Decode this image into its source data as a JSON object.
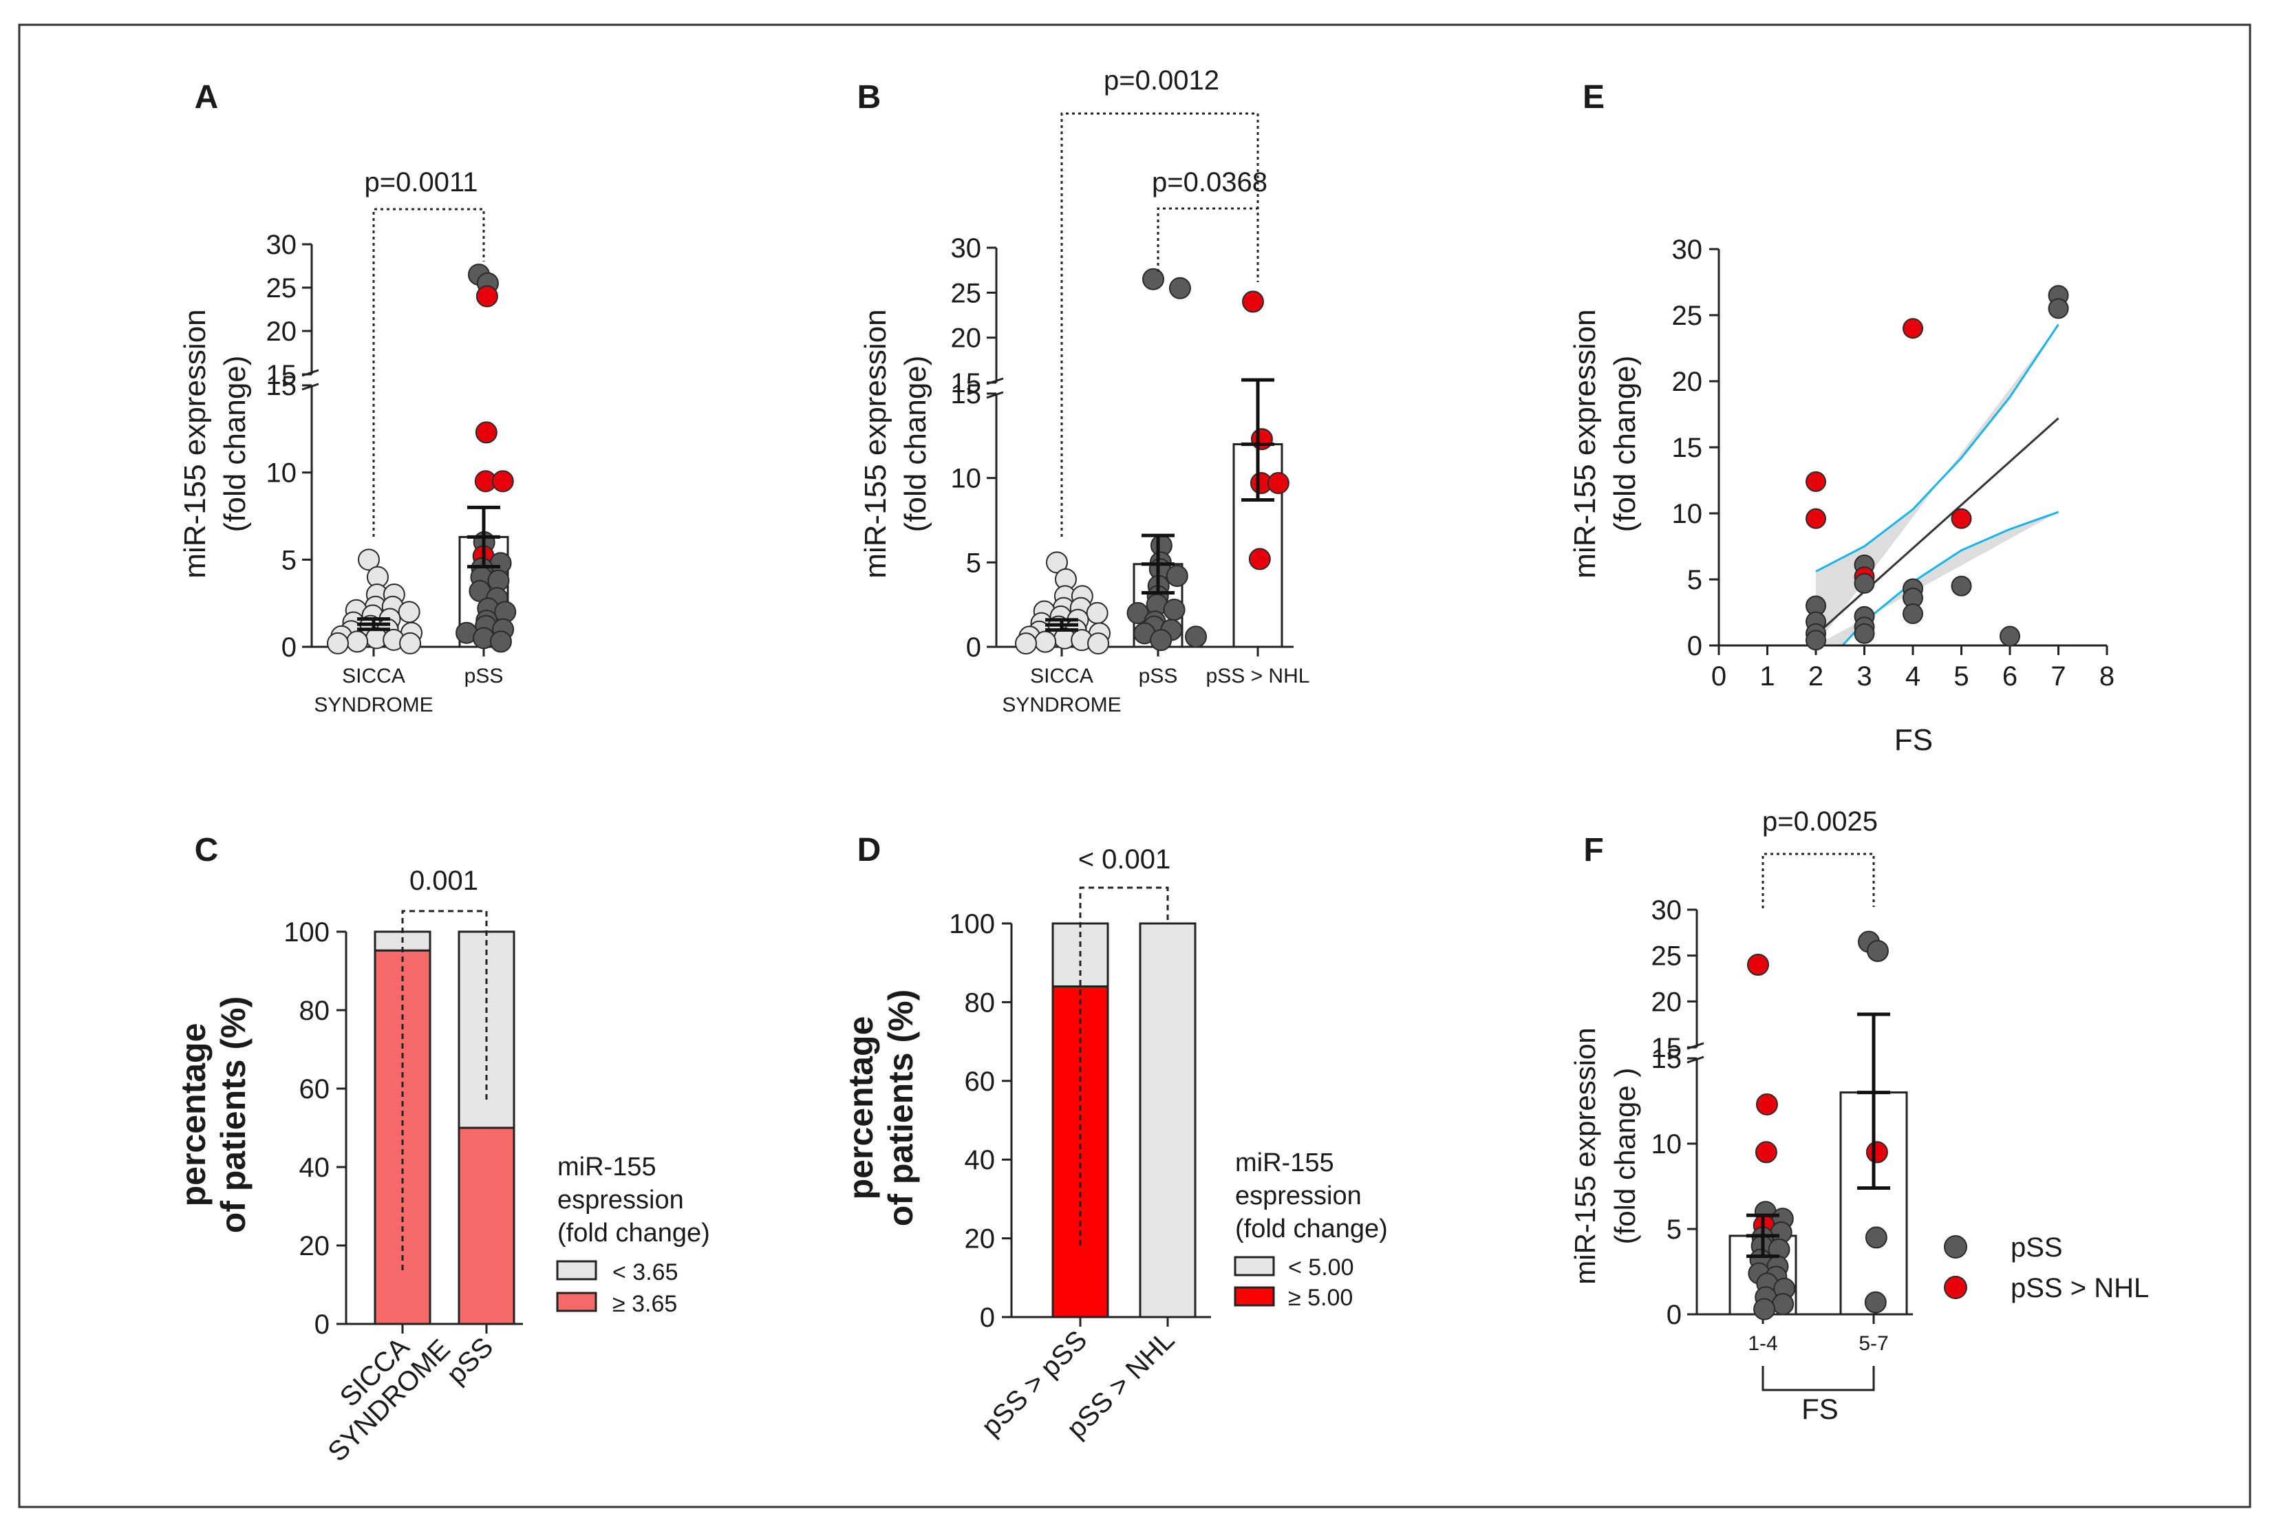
{
  "colors": {
    "dark_point": "#5a5a5a",
    "red_point": "#e8000b",
    "light_point": "#e6e6e6",
    "light_bar": "#e6e6e6",
    "pink_bar": "#f86a6a",
    "red_bar": "#ff0000",
    "ci_band": "#dddddd",
    "ci_line": "#19b4e6",
    "fit_line": "#333333"
  },
  "legend_F": {
    "pss": "pSS",
    "pss_nhl": "pSS > NHL"
  },
  "chart_data": [
    {
      "panel": "A",
      "type": "scatter",
      "ylabel_1": "miR-155 expression",
      "ylabel_2": "(fold change)",
      "lower_ticks": [
        0,
        5,
        10,
        15
      ],
      "upper_ticks": [
        15,
        20,
        25,
        30
      ],
      "ylim": [
        0,
        30
      ],
      "axis_break": 15,
      "categories": [
        {
          "label_lines": [
            "SICCA",
            "SYNDROME"
          ],
          "bar_mean": 1.3,
          "sem": 0.3,
          "points": [
            {
              "y": 5.0,
              "c": "l"
            },
            {
              "y": 4.0,
              "c": "l"
            },
            {
              "y": 3.0,
              "c": "l"
            },
            {
              "y": 3.0,
              "c": "l"
            },
            {
              "y": 2.3,
              "c": "l"
            },
            {
              "y": 2.3,
              "c": "l"
            },
            {
              "y": 2.1,
              "c": "l"
            },
            {
              "y": 2.0,
              "c": "l"
            },
            {
              "y": 1.8,
              "c": "l"
            },
            {
              "y": 1.6,
              "c": "l"
            },
            {
              "y": 1.4,
              "c": "l"
            },
            {
              "y": 1.2,
              "c": "l"
            },
            {
              "y": 1.0,
              "c": "l"
            },
            {
              "y": 0.9,
              "c": "l"
            },
            {
              "y": 0.8,
              "c": "l"
            },
            {
              "y": 0.6,
              "c": "l"
            },
            {
              "y": 0.5,
              "c": "l"
            },
            {
              "y": 0.4,
              "c": "l"
            },
            {
              "y": 0.3,
              "c": "l"
            },
            {
              "y": 0.2,
              "c": "l"
            },
            {
              "y": 0.2,
              "c": "l"
            }
          ]
        },
        {
          "label_lines": [
            "pSS"
          ],
          "bar_mean": 6.3,
          "sem": 1.7,
          "points": [
            {
              "y": 26.5,
              "c": "d"
            },
            {
              "y": 25.5,
              "c": "d"
            },
            {
              "y": 24.0,
              "c": "r"
            },
            {
              "y": 12.3,
              "c": "r"
            },
            {
              "y": 9.5,
              "c": "r"
            },
            {
              "y": 9.5,
              "c": "r"
            },
            {
              "y": 6.0,
              "c": "d"
            },
            {
              "y": 5.2,
              "c": "r"
            },
            {
              "y": 4.8,
              "c": "d"
            },
            {
              "y": 4.5,
              "c": "d"
            },
            {
              "y": 4.0,
              "c": "d"
            },
            {
              "y": 3.8,
              "c": "d"
            },
            {
              "y": 3.2,
              "c": "d"
            },
            {
              "y": 2.8,
              "c": "d"
            },
            {
              "y": 2.2,
              "c": "d"
            },
            {
              "y": 2.0,
              "c": "d"
            },
            {
              "y": 1.5,
              "c": "d"
            },
            {
              "y": 1.2,
              "c": "d"
            },
            {
              "y": 1.0,
              "c": "d"
            },
            {
              "y": 0.8,
              "c": "d"
            },
            {
              "y": 0.5,
              "c": "d"
            },
            {
              "y": 0.3,
              "c": "d"
            }
          ]
        }
      ],
      "annotations": [
        {
          "text": "p=0.0011",
          "from": 0,
          "to": 1
        }
      ]
    },
    {
      "panel": "B",
      "type": "scatter",
      "ylabel_1": "miR-155 expression",
      "ylabel_2": "(fold change)",
      "lower_ticks": [
        0,
        5,
        10,
        15
      ],
      "upper_ticks": [
        15,
        20,
        25,
        30
      ],
      "ylim": [
        0,
        30
      ],
      "axis_break": 15,
      "categories": [
        {
          "label_lines": [
            "SICCA",
            "SYNDROME"
          ],
          "bar_mean": 1.3,
          "sem": 0.3,
          "points": [
            {
              "y": 5.0,
              "c": "l"
            },
            {
              "y": 4.0,
              "c": "l"
            },
            {
              "y": 3.0,
              "c": "l"
            },
            {
              "y": 3.0,
              "c": "l"
            },
            {
              "y": 2.3,
              "c": "l"
            },
            {
              "y": 2.3,
              "c": "l"
            },
            {
              "y": 2.1,
              "c": "l"
            },
            {
              "y": 2.0,
              "c": "l"
            },
            {
              "y": 1.8,
              "c": "l"
            },
            {
              "y": 1.6,
              "c": "l"
            },
            {
              "y": 1.4,
              "c": "l"
            },
            {
              "y": 1.2,
              "c": "l"
            },
            {
              "y": 1.0,
              "c": "l"
            },
            {
              "y": 0.9,
              "c": "l"
            },
            {
              "y": 0.8,
              "c": "l"
            },
            {
              "y": 0.6,
              "c": "l"
            },
            {
              "y": 0.5,
              "c": "l"
            },
            {
              "y": 0.4,
              "c": "l"
            },
            {
              "y": 0.3,
              "c": "l"
            },
            {
              "y": 0.2,
              "c": "l"
            },
            {
              "y": 0.2,
              "c": "l"
            }
          ]
        },
        {
          "label_lines": [
            "pSS"
          ],
          "bar_mean": 4.9,
          "sem": 1.7,
          "points": [
            {
              "y": 26.5,
              "c": "d"
            },
            {
              "y": 25.5,
              "c": "d"
            },
            {
              "y": 6.0,
              "c": "d"
            },
            {
              "y": 5.0,
              "c": "d"
            },
            {
              "y": 4.6,
              "c": "d"
            },
            {
              "y": 4.2,
              "c": "d"
            },
            {
              "y": 3.6,
              "c": "d"
            },
            {
              "y": 3.0,
              "c": "d"
            },
            {
              "y": 2.5,
              "c": "d"
            },
            {
              "y": 2.2,
              "c": "d"
            },
            {
              "y": 2.0,
              "c": "d"
            },
            {
              "y": 1.5,
              "c": "d"
            },
            {
              "y": 1.2,
              "c": "d"
            },
            {
              "y": 1.0,
              "c": "d"
            },
            {
              "y": 0.8,
              "c": "d"
            },
            {
              "y": 0.6,
              "c": "d"
            },
            {
              "y": 0.4,
              "c": "d"
            }
          ]
        },
        {
          "label_lines": [
            "pSS > NHL"
          ],
          "bar_mean": 12.0,
          "sem": 3.3,
          "points": [
            {
              "y": 24.0,
              "c": "r"
            },
            {
              "y": 12.3,
              "c": "r"
            },
            {
              "y": 9.7,
              "c": "r"
            },
            {
              "y": 9.7,
              "c": "r"
            },
            {
              "y": 5.2,
              "c": "r"
            }
          ]
        }
      ],
      "annotations": [
        {
          "text": "p=0.0012",
          "from": 0,
          "to": 2
        },
        {
          "text": "p=0.0368",
          "from": 1,
          "to": 2
        }
      ]
    },
    {
      "panel": "E",
      "type": "scatter_regression",
      "ylabel_1": "miR-155 expression",
      "ylabel_2": "(fold change)",
      "xlabel": "FS",
      "xlim": [
        0,
        8
      ],
      "ylim": [
        0,
        30
      ],
      "x_ticks": [
        0,
        1,
        2,
        3,
        4,
        5,
        6,
        7,
        8
      ],
      "y_ticks": [
        0,
        5,
        10,
        15,
        20,
        25,
        30
      ],
      "points": [
        {
          "x": 2,
          "y": 12.4,
          "c": "r"
        },
        {
          "x": 2,
          "y": 9.6,
          "c": "r"
        },
        {
          "x": 2,
          "y": 3.0,
          "c": "d"
        },
        {
          "x": 2,
          "y": 1.8,
          "c": "d"
        },
        {
          "x": 2,
          "y": 0.9,
          "c": "d"
        },
        {
          "x": 2,
          "y": 0.4,
          "c": "d"
        },
        {
          "x": 3,
          "y": 6.1,
          "c": "d"
        },
        {
          "x": 3,
          "y": 5.2,
          "c": "r"
        },
        {
          "x": 3,
          "y": 4.7,
          "c": "d"
        },
        {
          "x": 3,
          "y": 2.2,
          "c": "d"
        },
        {
          "x": 3,
          "y": 1.4,
          "c": "d"
        },
        {
          "x": 3,
          "y": 0.9,
          "c": "d"
        },
        {
          "x": 4,
          "y": 24.0,
          "c": "r"
        },
        {
          "x": 4,
          "y": 4.3,
          "c": "d"
        },
        {
          "x": 4,
          "y": 3.6,
          "c": "d"
        },
        {
          "x": 4,
          "y": 2.4,
          "c": "d"
        },
        {
          "x": 5,
          "y": 9.6,
          "c": "r"
        },
        {
          "x": 5,
          "y": 4.5,
          "c": "d"
        },
        {
          "x": 6,
          "y": 0.7,
          "c": "d"
        },
        {
          "x": 7,
          "y": 26.5,
          "c": "d"
        },
        {
          "x": 7,
          "y": 25.5,
          "c": "d"
        }
      ],
      "fit": {
        "x": [
          2,
          7
        ],
        "y": [
          0.8,
          17.2
        ]
      },
      "ci_upper": [
        {
          "x": 2,
          "y": 5.6
        },
        {
          "x": 3,
          "y": 7.5
        },
        {
          "x": 4,
          "y": 10.3
        },
        {
          "x": 5,
          "y": 14.2
        },
        {
          "x": 6,
          "y": 18.8
        },
        {
          "x": 7,
          "y": 24.3
        }
      ],
      "ci_lower": [
        {
          "x": 2.55,
          "y": 0
        },
        {
          "x": 3,
          "y": 1.8
        },
        {
          "x": 4,
          "y": 4.8
        },
        {
          "x": 5,
          "y": 7.2
        },
        {
          "x": 6,
          "y": 8.8
        },
        {
          "x": 7,
          "y": 10.1
        }
      ]
    },
    {
      "panel": "C",
      "type": "stacked_bar",
      "ylabel_1": "percentage",
      "ylabel_2": "of patients (%)",
      "y_ticks": [
        0,
        20,
        40,
        60,
        80,
        100
      ],
      "ylim": [
        0,
        100
      ],
      "categories": [
        {
          "label_lines": [
            "SICCA",
            "SYNDROME"
          ],
          "low_pct": 4.8
        },
        {
          "label_lines": [
            "pSS"
          ],
          "low_pct": 50
        }
      ],
      "annotation": "0.001",
      "legend_title": [
        "miR-155",
        "espression",
        "(fold change)"
      ],
      "legend_items": [
        "< 3.65",
        "≥ 3.65"
      ],
      "high_color_key": "pink_bar"
    },
    {
      "panel": "D",
      "type": "stacked_bar",
      "ylabel_1": "percentage",
      "ylabel_2": "of patients (%)",
      "y_ticks": [
        0,
        20,
        40,
        60,
        80,
        100
      ],
      "ylim": [
        0,
        100
      ],
      "categories": [
        {
          "label_lines": [
            "pSS > pSS"
          ],
          "low_pct": 16
        },
        {
          "label_lines": [
            "pSS > NHL"
          ],
          "low_pct": 100
        }
      ],
      "annotation": "< 0.001",
      "legend_title": [
        "miR-155",
        "espression",
        "(fold change)"
      ],
      "legend_items": [
        "< 5.00",
        "≥ 5.00"
      ],
      "high_color_key": "red_bar"
    },
    {
      "panel": "F",
      "type": "scatter",
      "ylabel_1": "miR-155 expression",
      "ylabel_2": "(fold change )",
      "xlabel": "FS",
      "lower_ticks": [
        0,
        5,
        10,
        15
      ],
      "upper_ticks": [
        15,
        20,
        25,
        30
      ],
      "ylim": [
        0,
        30
      ],
      "axis_break": 15,
      "categories": [
        {
          "label_lines": [
            "1-4"
          ],
          "bar_mean": 4.6,
          "sem": 1.2,
          "points": [
            {
              "y": 24.0,
              "c": "r"
            },
            {
              "y": 12.3,
              "c": "r"
            },
            {
              "y": 9.5,
              "c": "r"
            },
            {
              "y": 6.0,
              "c": "d"
            },
            {
              "y": 5.6,
              "c": "d"
            },
            {
              "y": 5.2,
              "c": "r"
            },
            {
              "y": 4.8,
              "c": "d"
            },
            {
              "y": 4.5,
              "c": "d"
            },
            {
              "y": 4.0,
              "c": "d"
            },
            {
              "y": 3.8,
              "c": "d"
            },
            {
              "y": 3.2,
              "c": "d"
            },
            {
              "y": 2.8,
              "c": "d"
            },
            {
              "y": 2.4,
              "c": "d"
            },
            {
              "y": 2.2,
              "c": "d"
            },
            {
              "y": 1.8,
              "c": "d"
            },
            {
              "y": 1.5,
              "c": "d"
            },
            {
              "y": 1.0,
              "c": "d"
            },
            {
              "y": 0.6,
              "c": "d"
            },
            {
              "y": 0.3,
              "c": "d"
            }
          ]
        },
        {
          "label_lines": [
            "5-7"
          ],
          "bar_mean": 13.0,
          "sem": 5.6,
          "points": [
            {
              "y": 26.5,
              "c": "d"
            },
            {
              "y": 25.5,
              "c": "d"
            },
            {
              "y": 9.5,
              "c": "r"
            },
            {
              "y": 4.5,
              "c": "d"
            },
            {
              "y": 0.7,
              "c": "d"
            }
          ]
        }
      ],
      "annotations": [
        {
          "text": "p=0.0025",
          "from": 0,
          "to": 1
        }
      ]
    }
  ]
}
